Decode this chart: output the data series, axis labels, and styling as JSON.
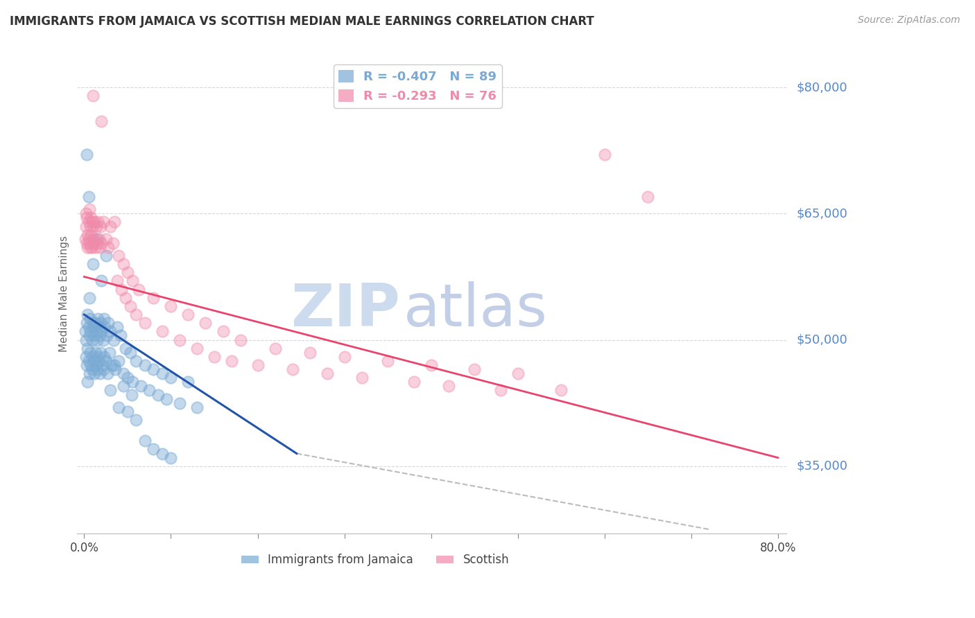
{
  "title": "IMMIGRANTS FROM JAMAICA VS SCOTTISH MEDIAN MALE EARNINGS CORRELATION CHART",
  "source": "Source: ZipAtlas.com",
  "ylabel": "Median Male Earnings",
  "series1_name": "Immigrants from Jamaica",
  "series1_color": "#7aaad4",
  "series1_line_color": "#2255aa",
  "series1_R": -0.407,
  "series1_N": 89,
  "series2_name": "Scottish",
  "series2_color": "#f08aaa",
  "series2_line_color": "#e8446e",
  "series2_R": -0.293,
  "series2_N": 76,
  "background_color": "#FFFFFF",
  "grid_color": "#CCCCCC",
  "title_color": "#333333",
  "axis_label_color": "#5588CC",
  "watermark_zip_color": "#c8d8ee",
  "watermark_atlas_color": "#aabbdd",
  "dashed_line_color": "#BBBBBB",
  "y_tick_positions": [
    35000,
    50000,
    65000,
    80000
  ],
  "y_tick_labels": [
    "$35,000",
    "$50,000",
    "$65,000",
    "$80,000"
  ],
  "x_min": 0.0,
  "x_max": 0.8,
  "y_min": 27000,
  "y_max": 84000,
  "blue_line_x": [
    0.0,
    0.245
  ],
  "blue_line_y": [
    53000,
    36500
  ],
  "pink_line_x": [
    0.0,
    0.8
  ],
  "pink_line_y": [
    57500,
    36000
  ],
  "dashed_line_x": [
    0.245,
    0.72
  ],
  "dashed_line_y": [
    36500,
    27500
  ],
  "blue_scatter": [
    [
      0.001,
      51000
    ],
    [
      0.002,
      50000
    ],
    [
      0.002,
      48000
    ],
    [
      0.003,
      52000
    ],
    [
      0.003,
      47000
    ],
    [
      0.004,
      53000
    ],
    [
      0.004,
      49000
    ],
    [
      0.005,
      51500
    ],
    [
      0.005,
      47500
    ],
    [
      0.006,
      50500
    ],
    [
      0.006,
      46000
    ],
    [
      0.007,
      52500
    ],
    [
      0.007,
      48500
    ],
    [
      0.008,
      51000
    ],
    [
      0.008,
      47000
    ],
    [
      0.009,
      50000
    ],
    [
      0.009,
      46500
    ],
    [
      0.01,
      52000
    ],
    [
      0.01,
      48000
    ],
    [
      0.011,
      51500
    ],
    [
      0.011,
      47500
    ],
    [
      0.012,
      50500
    ],
    [
      0.012,
      46000
    ],
    [
      0.013,
      52000
    ],
    [
      0.013,
      48500
    ],
    [
      0.014,
      51000
    ],
    [
      0.014,
      47000
    ],
    [
      0.015,
      50000
    ],
    [
      0.015,
      46500
    ],
    [
      0.016,
      52500
    ],
    [
      0.016,
      48000
    ],
    [
      0.017,
      51500
    ],
    [
      0.017,
      47500
    ],
    [
      0.018,
      50500
    ],
    [
      0.018,
      46000
    ],
    [
      0.019,
      52000
    ],
    [
      0.019,
      48500
    ],
    [
      0.02,
      51000
    ],
    [
      0.021,
      47000
    ],
    [
      0.022,
      50000
    ],
    [
      0.022,
      46500
    ],
    [
      0.023,
      52500
    ],
    [
      0.023,
      48000
    ],
    [
      0.024,
      51500
    ],
    [
      0.025,
      47500
    ],
    [
      0.026,
      50500
    ],
    [
      0.027,
      46000
    ],
    [
      0.028,
      52000
    ],
    [
      0.029,
      48500
    ],
    [
      0.03,
      51000
    ],
    [
      0.032,
      47000
    ],
    [
      0.034,
      50000
    ],
    [
      0.036,
      46500
    ],
    [
      0.038,
      51500
    ],
    [
      0.04,
      47500
    ],
    [
      0.042,
      50500
    ],
    [
      0.045,
      46000
    ],
    [
      0.048,
      49000
    ],
    [
      0.05,
      45500
    ],
    [
      0.053,
      48500
    ],
    [
      0.056,
      45000
    ],
    [
      0.06,
      47500
    ],
    [
      0.065,
      44500
    ],
    [
      0.07,
      47000
    ],
    [
      0.075,
      44000
    ],
    [
      0.08,
      46500
    ],
    [
      0.085,
      43500
    ],
    [
      0.09,
      46000
    ],
    [
      0.095,
      43000
    ],
    [
      0.1,
      45500
    ],
    [
      0.11,
      42500
    ],
    [
      0.12,
      45000
    ],
    [
      0.13,
      42000
    ],
    [
      0.005,
      67000
    ],
    [
      0.01,
      59000
    ],
    [
      0.015,
      62000
    ],
    [
      0.02,
      57000
    ],
    [
      0.025,
      60000
    ],
    [
      0.003,
      72000
    ],
    [
      0.006,
      55000
    ],
    [
      0.004,
      45000
    ],
    [
      0.03,
      44000
    ],
    [
      0.035,
      47000
    ],
    [
      0.04,
      42000
    ],
    [
      0.045,
      44500
    ],
    [
      0.05,
      41500
    ],
    [
      0.055,
      43500
    ],
    [
      0.06,
      40500
    ],
    [
      0.07,
      38000
    ],
    [
      0.08,
      37000
    ],
    [
      0.09,
      36500
    ],
    [
      0.1,
      36000
    ]
  ],
  "pink_scatter": [
    [
      0.001,
      62000
    ],
    [
      0.002,
      65000
    ],
    [
      0.002,
      63500
    ],
    [
      0.003,
      61500
    ],
    [
      0.003,
      64500
    ],
    [
      0.004,
      62500
    ],
    [
      0.004,
      61000
    ],
    [
      0.005,
      64000
    ],
    [
      0.005,
      62000
    ],
    [
      0.006,
      65500
    ],
    [
      0.006,
      61500
    ],
    [
      0.007,
      63500
    ],
    [
      0.007,
      61000
    ],
    [
      0.008,
      64500
    ],
    [
      0.008,
      62500
    ],
    [
      0.009,
      61000
    ],
    [
      0.009,
      64000
    ],
    [
      0.01,
      62000
    ],
    [
      0.01,
      63500
    ],
    [
      0.011,
      61500
    ],
    [
      0.012,
      64000
    ],
    [
      0.012,
      62000
    ],
    [
      0.013,
      61000
    ],
    [
      0.014,
      63500
    ],
    [
      0.015,
      61500
    ],
    [
      0.016,
      64000
    ],
    [
      0.017,
      62000
    ],
    [
      0.018,
      61000
    ],
    [
      0.019,
      63500
    ],
    [
      0.02,
      61500
    ],
    [
      0.022,
      64000
    ],
    [
      0.025,
      62000
    ],
    [
      0.028,
      61000
    ],
    [
      0.03,
      63500
    ],
    [
      0.033,
      61500
    ],
    [
      0.035,
      64000
    ],
    [
      0.038,
      57000
    ],
    [
      0.04,
      60000
    ],
    [
      0.043,
      56000
    ],
    [
      0.045,
      59000
    ],
    [
      0.048,
      55000
    ],
    [
      0.05,
      58000
    ],
    [
      0.053,
      54000
    ],
    [
      0.056,
      57000
    ],
    [
      0.06,
      53000
    ],
    [
      0.063,
      56000
    ],
    [
      0.07,
      52000
    ],
    [
      0.08,
      55000
    ],
    [
      0.09,
      51000
    ],
    [
      0.1,
      54000
    ],
    [
      0.11,
      50000
    ],
    [
      0.12,
      53000
    ],
    [
      0.13,
      49000
    ],
    [
      0.14,
      52000
    ],
    [
      0.15,
      48000
    ],
    [
      0.16,
      51000
    ],
    [
      0.17,
      47500
    ],
    [
      0.18,
      50000
    ],
    [
      0.2,
      47000
    ],
    [
      0.22,
      49000
    ],
    [
      0.24,
      46500
    ],
    [
      0.26,
      48500
    ],
    [
      0.28,
      46000
    ],
    [
      0.3,
      48000
    ],
    [
      0.32,
      45500
    ],
    [
      0.35,
      47500
    ],
    [
      0.38,
      45000
    ],
    [
      0.4,
      47000
    ],
    [
      0.42,
      44500
    ],
    [
      0.45,
      46500
    ],
    [
      0.48,
      44000
    ],
    [
      0.5,
      46000
    ],
    [
      0.01,
      79000
    ],
    [
      0.02,
      76000
    ],
    [
      0.6,
      72000
    ],
    [
      0.65,
      67000
    ],
    [
      0.55,
      44000
    ]
  ]
}
